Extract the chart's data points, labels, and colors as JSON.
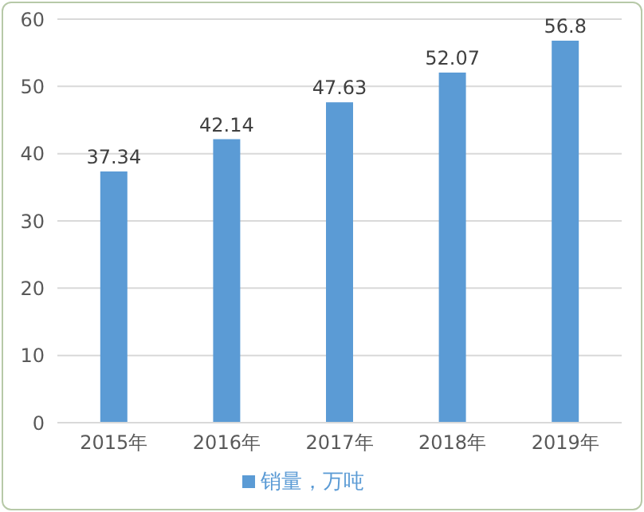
{
  "chart_data": {
    "type": "bar",
    "categories": [
      "2015年",
      "2016年",
      "2017年",
      "2018年",
      "2019年"
    ],
    "series": [
      {
        "name": "销量，万吨",
        "color": "#5b9bd5",
        "values": [
          37.34,
          42.14,
          47.63,
          52.07,
          56.8
        ]
      }
    ],
    "ylim": [
      0,
      60
    ],
    "yticks": [
      0,
      10,
      20,
      30,
      40,
      50,
      60
    ],
    "grid": "y",
    "legend": "bottom",
    "data_labels": true
  }
}
